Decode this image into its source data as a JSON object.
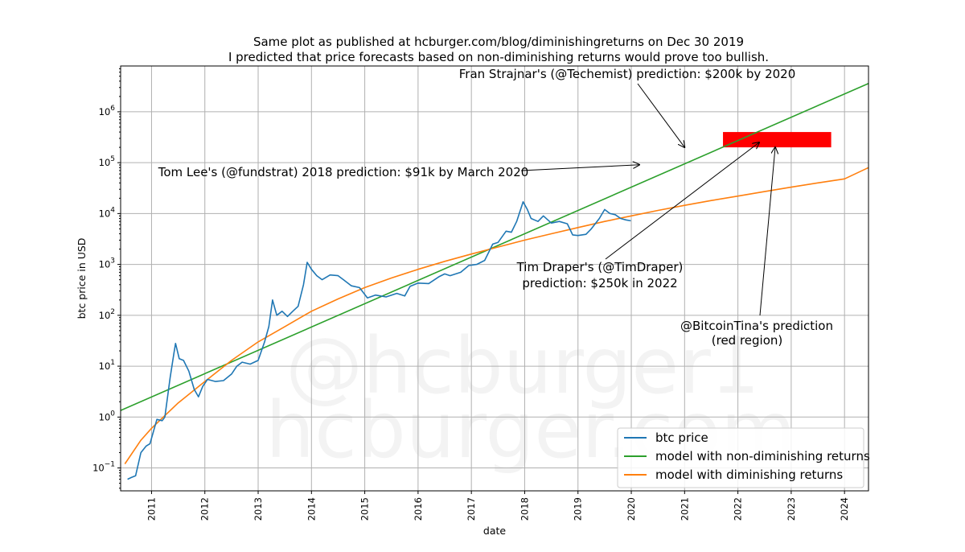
{
  "colors": {
    "btc": "#1f77b4",
    "non_diminishing": "#2ca02c",
    "diminishing": "#ff7f0e",
    "red_region": "#ff0000",
    "grid": "#b0b0b0"
  },
  "chart_data": {
    "type": "line",
    "title_lines": [
      "Same plot as published at hcburger.com/blog/diminishingreturns on Dec 30 2019",
      "I predicted that price forecasts based on non-diminishing returns would prove too bullish."
    ],
    "xlabel": "date",
    "ylabel": "btc price in USD",
    "xlim": [
      2010.42,
      2024.45
    ],
    "ylim_log10": [
      -1.45,
      6.9
    ],
    "yscale": "log",
    "grid": true,
    "x_ticks": [
      {
        "value": 2011,
        "label": "2011"
      },
      {
        "value": 2012,
        "label": "2012"
      },
      {
        "value": 2013,
        "label": "2013"
      },
      {
        "value": 2014,
        "label": "2014"
      },
      {
        "value": 2015,
        "label": "2015"
      },
      {
        "value": 2016,
        "label": "2016"
      },
      {
        "value": 2017,
        "label": "2017"
      },
      {
        "value": 2018,
        "label": "2018"
      },
      {
        "value": 2019,
        "label": "2019"
      },
      {
        "value": 2020,
        "label": "2020"
      },
      {
        "value": 2021,
        "label": "2021"
      },
      {
        "value": 2022,
        "label": "2022"
      },
      {
        "value": 2023,
        "label": "2023"
      },
      {
        "value": 2024,
        "label": "2024"
      }
    ],
    "y_ticks": [
      {
        "exp": -1,
        "base": "10",
        "sup": "−1"
      },
      {
        "exp": 0,
        "base": "10",
        "sup": "0"
      },
      {
        "exp": 1,
        "base": "10",
        "sup": "1"
      },
      {
        "exp": 2,
        "base": "10",
        "sup": "2"
      },
      {
        "exp": 3,
        "base": "10",
        "sup": "3"
      },
      {
        "exp": 4,
        "base": "10",
        "sup": "4"
      },
      {
        "exp": 5,
        "base": "10",
        "sup": "5"
      },
      {
        "exp": 6,
        "base": "10",
        "sup": "6"
      }
    ],
    "series": [
      {
        "name": "btc price",
        "color": "#1f77b4",
        "points": [
          [
            2010.55,
            0.06
          ],
          [
            2010.62,
            0.065
          ],
          [
            2010.7,
            0.07
          ],
          [
            2010.8,
            0.2
          ],
          [
            2010.9,
            0.27
          ],
          [
            2010.97,
            0.3
          ],
          [
            2011.1,
            0.9
          ],
          [
            2011.2,
            0.85
          ],
          [
            2011.25,
            1.0
          ],
          [
            2011.35,
            6
          ],
          [
            2011.42,
            18
          ],
          [
            2011.45,
            28
          ],
          [
            2011.52,
            14
          ],
          [
            2011.6,
            13
          ],
          [
            2011.7,
            8
          ],
          [
            2011.8,
            3.5
          ],
          [
            2011.88,
            2.5
          ],
          [
            2011.96,
            4
          ],
          [
            2012.05,
            5.5
          ],
          [
            2012.2,
            5
          ],
          [
            2012.35,
            5.2
          ],
          [
            2012.5,
            7
          ],
          [
            2012.6,
            10
          ],
          [
            2012.7,
            12
          ],
          [
            2012.85,
            11
          ],
          [
            2013.0,
            13
          ],
          [
            2013.12,
            30
          ],
          [
            2013.2,
            60
          ],
          [
            2013.27,
            200
          ],
          [
            2013.35,
            100
          ],
          [
            2013.45,
            120
          ],
          [
            2013.55,
            95
          ],
          [
            2013.65,
            120
          ],
          [
            2013.75,
            150
          ],
          [
            2013.85,
            400
          ],
          [
            2013.92,
            1100
          ],
          [
            2014.0,
            800
          ],
          [
            2014.1,
            600
          ],
          [
            2014.2,
            500
          ],
          [
            2014.35,
            620
          ],
          [
            2014.5,
            600
          ],
          [
            2014.6,
            500
          ],
          [
            2014.75,
            380
          ],
          [
            2014.9,
            350
          ],
          [
            2015.05,
            220
          ],
          [
            2015.2,
            250
          ],
          [
            2015.4,
            230
          ],
          [
            2015.6,
            270
          ],
          [
            2015.75,
            240
          ],
          [
            2015.85,
            370
          ],
          [
            2016.0,
            430
          ],
          [
            2016.2,
            420
          ],
          [
            2016.4,
            580
          ],
          [
            2016.5,
            650
          ],
          [
            2016.6,
            600
          ],
          [
            2016.8,
            700
          ],
          [
            2016.95,
            950
          ],
          [
            2017.1,
            1000
          ],
          [
            2017.25,
            1200
          ],
          [
            2017.4,
            2500
          ],
          [
            2017.5,
            2700
          ],
          [
            2017.65,
            4500
          ],
          [
            2017.75,
            4300
          ],
          [
            2017.85,
            7000
          ],
          [
            2017.97,
            17000
          ],
          [
            2018.05,
            12000
          ],
          [
            2018.12,
            8000
          ],
          [
            2018.25,
            7000
          ],
          [
            2018.35,
            9000
          ],
          [
            2018.5,
            6500
          ],
          [
            2018.65,
            7000
          ],
          [
            2018.8,
            6300
          ],
          [
            2018.9,
            3800
          ],
          [
            2019.0,
            3700
          ],
          [
            2019.15,
            3900
          ],
          [
            2019.25,
            5000
          ],
          [
            2019.4,
            8000
          ],
          [
            2019.5,
            12000
          ],
          [
            2019.6,
            10000
          ],
          [
            2019.7,
            9500
          ],
          [
            2019.8,
            8000
          ],
          [
            2019.9,
            7500
          ],
          [
            2019.99,
            7200
          ]
        ]
      },
      {
        "name": "model with non-diminishing returns",
        "color": "#2ca02c",
        "points": [
          [
            2010.42,
            1.35
          ],
          [
            2024.45,
            3600000
          ]
        ]
      },
      {
        "name": "model with diminishing returns",
        "color": "#ff7f0e",
        "points": [
          [
            2010.5,
            0.12
          ],
          [
            2010.8,
            0.35
          ],
          [
            2011.0,
            0.6
          ],
          [
            2011.5,
            1.9
          ],
          [
            2012.0,
            5.0
          ],
          [
            2012.5,
            13
          ],
          [
            2013.0,
            30
          ],
          [
            2013.5,
            60
          ],
          [
            2014.0,
            120
          ],
          [
            2014.5,
            210
          ],
          [
            2015.0,
            350
          ],
          [
            2015.5,
            540
          ],
          [
            2016.0,
            800
          ],
          [
            2016.5,
            1150
          ],
          [
            2017.0,
            1600
          ],
          [
            2017.5,
            2200
          ],
          [
            2018.0,
            3000
          ],
          [
            2018.5,
            4000
          ],
          [
            2019.0,
            5300
          ],
          [
            2019.5,
            7000
          ],
          [
            2020.0,
            9000
          ],
          [
            2020.5,
            11500
          ],
          [
            2021.0,
            14500
          ],
          [
            2021.5,
            18000
          ],
          [
            2022.0,
            22000
          ],
          [
            2022.5,
            27000
          ],
          [
            2023.0,
            33000
          ],
          [
            2023.5,
            40000
          ],
          [
            2024.0,
            48000
          ],
          [
            2024.45,
            80000
          ]
        ]
      }
    ],
    "red_region": {
      "label": "@BitcoinTina's prediction (red region)",
      "x0": 2021.72,
      "x1": 2023.75,
      "y0": 200000,
      "y1": 400000
    },
    "annotations": [
      {
        "text": "Fran Strajnar's (@Techemist) prediction: $200k by 2020",
        "target_x": 2021.0,
        "target_y": 200000
      },
      {
        "text": "Tom Lee's (@fundstrat) 2018 prediction: $91k by March 2020",
        "target_x": 2020.15,
        "target_y": 91000
      },
      {
        "text_lines": [
          "Tim Draper's (@TimDraper)",
          "prediction: $250k in 2022"
        ],
        "target_x": 2022.4,
        "target_y": 250000
      },
      {
        "text_lines": [
          "@BitcoinTina's prediction",
          "(red region)"
        ],
        "target_x": 2022.7,
        "target_y": 200000
      }
    ],
    "legend_position": "lower-right",
    "watermark": [
      "@hcburger1",
      "hcburger.com"
    ]
  }
}
